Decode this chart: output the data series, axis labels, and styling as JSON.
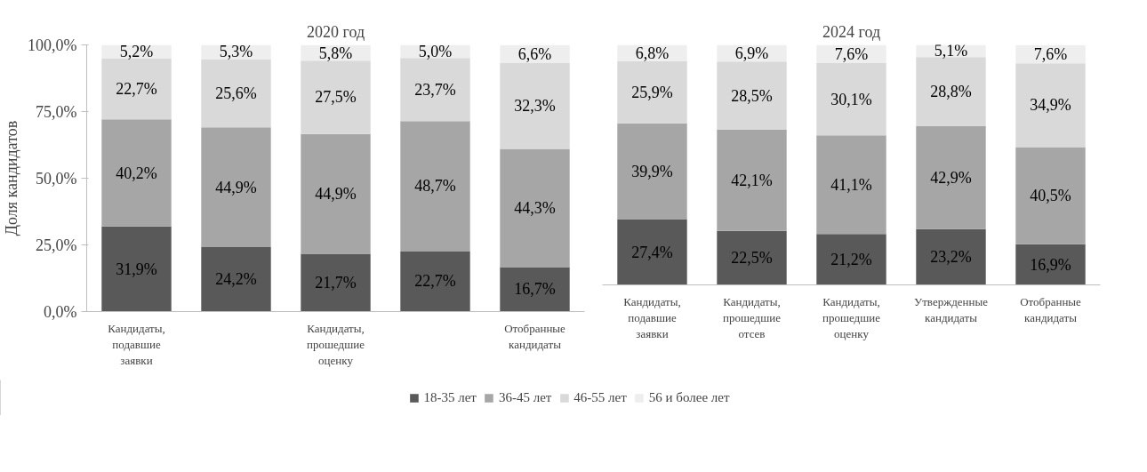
{
  "chart_data": [
    {
      "type": "bar",
      "stacked": true,
      "title": "2020 год",
      "ylabel": "Доля кандидатов",
      "categories": [
        "Кандидаты, подавшие заявки",
        null,
        "Кандидаты, прошедшие оценку",
        null,
        "Отобранные кандидаты"
      ],
      "ylim": [
        0,
        100
      ],
      "yticks": [
        {
          "value": 0,
          "label": "0,0%"
        },
        {
          "value": 25,
          "label": "25,0%"
        },
        {
          "value": 50,
          "label": "50,0%"
        },
        {
          "value": 75,
          "label": "75,0%"
        },
        {
          "value": 100,
          "label": "100,0%"
        }
      ],
      "grid": false,
      "legend": "bottom",
      "series": [
        {
          "name": "18-35 лет",
          "color": "#595959",
          "values": [
            31.9,
            24.2,
            21.7,
            22.7,
            16.7
          ],
          "value_labels": [
            "31,9%",
            "24,2%",
            "21,7%",
            "22,7%",
            "16,7%"
          ]
        },
        {
          "name": "36-45 лет",
          "color": "#a6a6a6",
          "values": [
            40.2,
            44.9,
            44.9,
            48.7,
            44.3
          ],
          "value_labels": [
            "40,2%",
            "44,9%",
            "44,9%",
            "48,7%",
            "44,3%"
          ]
        },
        {
          "name": "46-55 лет",
          "color": "#d9d9d9",
          "values": [
            22.7,
            25.6,
            27.5,
            23.7,
            32.3
          ],
          "value_labels": [
            "22,7%",
            "25,6%",
            "27,5%",
            "23,7%",
            "32,3%"
          ]
        },
        {
          "name": "56 и более лет",
          "color": "#eeeeee",
          "values": [
            5.2,
            5.3,
            5.8,
            5.0,
            6.6
          ],
          "value_labels": [
            "5,2%",
            "5,3%",
            "5,8%",
            "5,0%",
            "6,6%"
          ]
        }
      ]
    },
    {
      "type": "bar",
      "stacked": true,
      "title": "2024 год",
      "tick_labels": "x",
      "categories": [
        "Кандидаты, подавшие заявки",
        "Кандидаты, прошедшие отсев",
        "Кандидаты, прошедшие оценку",
        "Утвержденные кандидаты",
        "Отобранные кандидаты"
      ],
      "grid": false,
      "series": [
        {
          "color": "#595959",
          "values": [
            27.4,
            22.5,
            21.2,
            23.2,
            16.9
          ],
          "value_labels": [
            "27,4%",
            "22,5%",
            "21,2%",
            "23,2%",
            "16,9%"
          ]
        },
        {
          "color": "#a6a6a6",
          "values": [
            39.9,
            42.1,
            41.1,
            42.9,
            40.5
          ],
          "value_labels": [
            "39,9%",
            "42,1%",
            "41,1%",
            "42,9%",
            "40,5%"
          ]
        },
        {
          "color": "#d9d9d9",
          "values": [
            25.9,
            28.5,
            30.1,
            28.8,
            34.9
          ],
          "value_labels": [
            "25,9%",
            "28,5%",
            "30,1%",
            "28,8%",
            "34,9%"
          ]
        },
        {
          "color": "#eeeeee",
          "values": [
            6.8,
            6.9,
            7.6,
            5.1,
            7.6
          ],
          "value_labels": [
            "6,8%",
            "6,9%",
            "7,6%",
            "5,1%",
            "7,6%"
          ]
        }
      ]
    }
  ]
}
